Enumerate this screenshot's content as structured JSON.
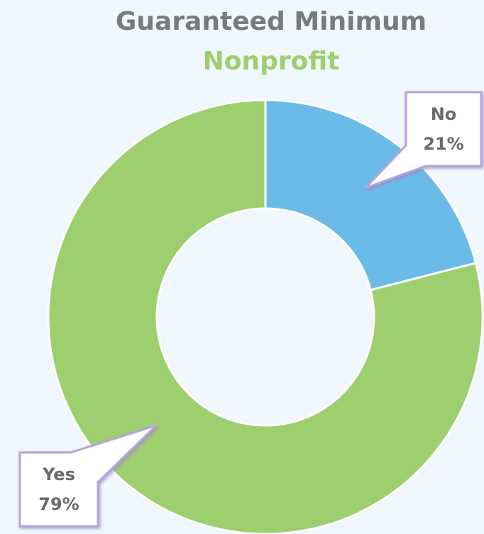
{
  "chart_data": {
    "type": "donut",
    "title": "Guaranteed Minimum",
    "subtitle": "Nonprofit",
    "categories": [
      "No",
      "Yes"
    ],
    "values": [
      21,
      79
    ],
    "value_labels": [
      "21%",
      "79%"
    ],
    "colors": [
      "#6bbbe8",
      "#9ecf6f"
    ]
  }
}
